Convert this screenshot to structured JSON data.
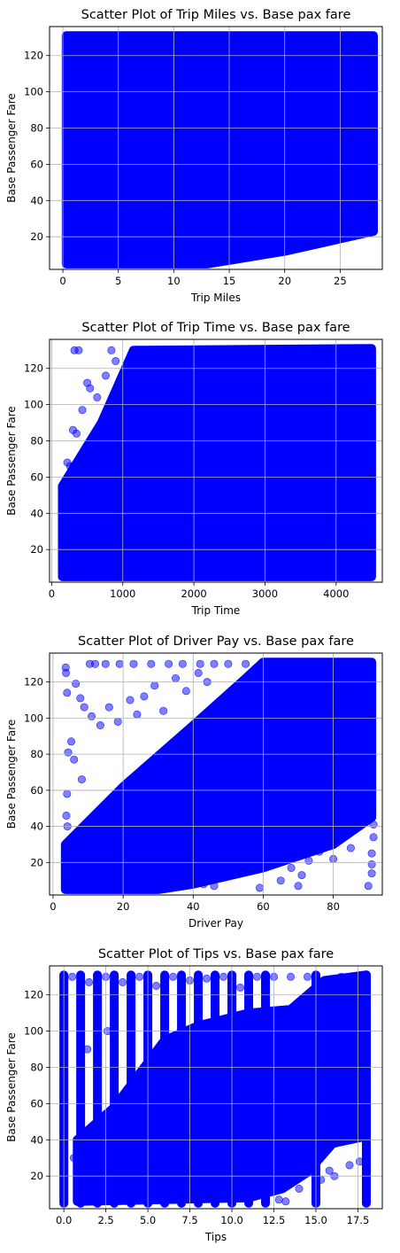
{
  "chart_data": [
    {
      "type": "scatter",
      "title": "Scatter Plot of Trip Miles vs. Base pax fare",
      "xlabel": "Trip Miles",
      "ylabel": "Base Passenger Fare",
      "xlim": [
        -1.2,
        28.8
      ],
      "ylim": [
        2,
        136
      ],
      "xticks": [
        0,
        5,
        10,
        15,
        20,
        25
      ],
      "xtick_labels": [
        "0",
        "5",
        "10",
        "15",
        "20",
        "25"
      ],
      "yticks": [
        20,
        40,
        60,
        80,
        100,
        120
      ],
      "ytick_labels": [
        "20",
        "40",
        "60",
        "80",
        "100",
        "120"
      ],
      "grid": true,
      "point_color": "#0000ff",
      "point_alpha": 0.5,
      "dense_region": [
        [
          0.3,
          130
        ],
        [
          0.3,
          5
        ],
        [
          13,
          5
        ],
        [
          20,
          12
        ],
        [
          28,
          23
        ],
        [
          28,
          131
        ],
        [
          0.3,
          131
        ]
      ],
      "outliers": [
        [
          1.3,
          125
        ],
        [
          1.5,
          118
        ],
        [
          1.1,
          112
        ],
        [
          0.8,
          108
        ],
        [
          2.2,
          122
        ],
        [
          2.8,
          127
        ],
        [
          0.5,
          100
        ],
        [
          1.0,
          97
        ],
        [
          0.7,
          90
        ],
        [
          14.1,
          6
        ],
        [
          14.6,
          6.5
        ],
        [
          10.8,
          7
        ],
        [
          22.0,
          17
        ],
        [
          23.1,
          18
        ],
        [
          21.2,
          15
        ],
        [
          24.5,
          26
        ],
        [
          26.8,
          27
        ],
        [
          27.4,
          31
        ],
        [
          25.8,
          37
        ],
        [
          27.7,
          35
        ],
        [
          3.2,
          126
        ],
        [
          4.4,
          130
        ],
        [
          20.6,
          14
        ]
      ]
    },
    {
      "type": "scatter",
      "title": "Scatter Plot of Trip Time vs. Base pax fare",
      "xlabel": "Trip Time",
      "ylabel": "Base Passenger Fare",
      "xlim": [
        -30,
        4650
      ],
      "ylim": [
        2,
        136
      ],
      "xticks": [
        0,
        1000,
        2000,
        3000,
        4000
      ],
      "xtick_labels": [
        "0",
        "1000",
        "2000",
        "3000",
        "4000"
      ],
      "yticks": [
        20,
        40,
        60,
        80,
        100,
        120
      ],
      "ytick_labels": [
        "20",
        "40",
        "60",
        "80",
        "100",
        "120"
      ],
      "grid": true,
      "point_color": "#0000ff",
      "point_alpha": 0.5,
      "dense_region": [
        [
          150,
          55
        ],
        [
          700,
          90
        ],
        [
          1150,
          130
        ],
        [
          4500,
          131
        ],
        [
          4500,
          5
        ],
        [
          150,
          5
        ]
      ],
      "outliers": [
        [
          320,
          130
        ],
        [
          380,
          130
        ],
        [
          500,
          112
        ],
        [
          540,
          109
        ],
        [
          430,
          97
        ],
        [
          300,
          86
        ],
        [
          350,
          84
        ],
        [
          220,
          68
        ],
        [
          260,
          66
        ],
        [
          840,
          130
        ],
        [
          900,
          124
        ],
        [
          760,
          116
        ],
        [
          640,
          104
        ],
        [
          3050,
          7
        ],
        [
          3200,
          12
        ],
        [
          3500,
          6
        ],
        [
          3700,
          6
        ],
        [
          3950,
          13
        ],
        [
          4050,
          17
        ],
        [
          4480,
          10
        ],
        [
          4480,
          6
        ],
        [
          4420,
          14
        ],
        [
          4300,
          18
        ],
        [
          4150,
          9
        ]
      ]
    },
    {
      "type": "scatter",
      "title": "Scatter Plot of Driver Pay vs. Base pax fare",
      "xlabel": "Driver Pay",
      "ylabel": "Base Passenger Fare",
      "xlim": [
        -1,
        94
      ],
      "ylim": [
        2,
        136
      ],
      "xticks": [
        0,
        20,
        40,
        60,
        80
      ],
      "xtick_labels": [
        "0",
        "20",
        "40",
        "60",
        "80"
      ],
      "yticks": [
        20,
        40,
        60,
        80,
        100,
        120
      ],
      "ytick_labels": [
        "20",
        "40",
        "60",
        "80",
        "100",
        "120"
      ],
      "grid": true,
      "point_color": "#0000ff",
      "point_alpha": 0.5,
      "dense_region": [
        [
          3.5,
          30
        ],
        [
          20,
          62
        ],
        [
          40,
          96
        ],
        [
          55,
          122
        ],
        [
          60,
          131
        ],
        [
          91,
          131
        ],
        [
          91,
          45
        ],
        [
          80,
          30
        ],
        [
          60,
          17
        ],
        [
          40,
          8
        ],
        [
          30,
          5
        ],
        [
          3.5,
          5
        ]
      ],
      "outliers": [
        [
          3.6,
          128
        ],
        [
          3.7,
          125
        ],
        [
          4.0,
          114
        ],
        [
          6.5,
          119
        ],
        [
          7.8,
          111
        ],
        [
          8.9,
          106
        ],
        [
          5.2,
          87
        ],
        [
          4.3,
          81
        ],
        [
          6.0,
          77
        ],
        [
          8.2,
          66
        ],
        [
          4.0,
          58
        ],
        [
          3.8,
          46
        ],
        [
          4.1,
          40
        ],
        [
          11.0,
          101
        ],
        [
          13.5,
          96
        ],
        [
          16.0,
          106
        ],
        [
          18.5,
          98
        ],
        [
          22.0,
          110
        ],
        [
          24.0,
          102
        ],
        [
          26.0,
          112
        ],
        [
          29.0,
          118
        ],
        [
          31.5,
          104
        ],
        [
          35.0,
          122
        ],
        [
          38.0,
          115
        ],
        [
          41.5,
          125
        ],
        [
          44.0,
          120
        ],
        [
          10.5,
          130
        ],
        [
          12.0,
          130
        ],
        [
          15.0,
          130
        ],
        [
          19.0,
          130
        ],
        [
          23.0,
          130
        ],
        [
          28.0,
          130
        ],
        [
          33.0,
          130
        ],
        [
          37.0,
          130
        ],
        [
          42.0,
          130
        ],
        [
          46.0,
          130
        ],
        [
          50.0,
          130
        ],
        [
          55.0,
          130
        ],
        [
          43.0,
          8
        ],
        [
          46.0,
          7
        ],
        [
          59.0,
          6
        ],
        [
          65.0,
          10
        ],
        [
          70.0,
          7
        ],
        [
          73.0,
          21
        ],
        [
          76.0,
          26
        ],
        [
          80.0,
          22
        ],
        [
          82.5,
          34
        ],
        [
          85.0,
          28
        ],
        [
          88.0,
          42
        ],
        [
          90.0,
          7
        ],
        [
          91.0,
          14
        ],
        [
          91.0,
          19
        ],
        [
          91.0,
          25
        ],
        [
          91.5,
          34
        ],
        [
          91.5,
          41
        ],
        [
          68.0,
          17
        ],
        [
          71.0,
          13
        ],
        [
          61.0,
          24
        ]
      ]
    },
    {
      "type": "scatter",
      "title": "Scatter Plot of Tips vs. Base pax fare",
      "xlabel": "Tips",
      "ylabel": "Base Passenger Fare",
      "xlim": [
        -0.85,
        18.95
      ],
      "ylim": [
        2,
        136
      ],
      "xticks": [
        0.0,
        2.5,
        5.0,
        7.5,
        10.0,
        12.5,
        15.0,
        17.5
      ],
      "xtick_labels": [
        "0.0",
        "2.5",
        "5.0",
        "7.5",
        "10.0",
        "12.5",
        "15.0",
        "17.5"
      ],
      "yticks": [
        20,
        40,
        60,
        80,
        100,
        120
      ],
      "ytick_labels": [
        "20",
        "40",
        "60",
        "80",
        "100",
        "120"
      ],
      "grid": true,
      "point_color": "#0000ff",
      "point_alpha": 0.5,
      "dense_region": [
        [
          0.8,
          6
        ],
        [
          0.8,
          40
        ],
        [
          3,
          58
        ],
        [
          6,
          95
        ],
        [
          8,
          103
        ],
        [
          11,
          110
        ],
        [
          13.5,
          112
        ],
        [
          15.5,
          128
        ],
        [
          18,
          131
        ],
        [
          18,
          42
        ],
        [
          16,
          38
        ],
        [
          14.5,
          22
        ],
        [
          13,
          13
        ],
        [
          11,
          8
        ],
        [
          0.8,
          6
        ]
      ],
      "columns": [
        {
          "x": 0.0,
          "y0": 5,
          "y1": 131
        },
        {
          "x": 1.0,
          "y0": 5,
          "y1": 131
        },
        {
          "x": 2.0,
          "y0": 5,
          "y1": 131
        },
        {
          "x": 3.0,
          "y0": 5,
          "y1": 131
        },
        {
          "x": 4.0,
          "y0": 5,
          "y1": 131
        },
        {
          "x": 5.0,
          "y0": 5,
          "y1": 131
        },
        {
          "x": 6.0,
          "y0": 5,
          "y1": 131
        },
        {
          "x": 7.0,
          "y0": 5,
          "y1": 131
        },
        {
          "x": 8.0,
          "y0": 5,
          "y1": 131
        },
        {
          "x": 9.0,
          "y0": 5,
          "y1": 131
        },
        {
          "x": 10.0,
          "y0": 5,
          "y1": 131
        },
        {
          "x": 11.0,
          "y0": 5,
          "y1": 131
        },
        {
          "x": 12.0,
          "y0": 5,
          "y1": 131
        },
        {
          "x": 15.0,
          "y0": 5,
          "y1": 131
        },
        {
          "x": 18.0,
          "y0": 5,
          "y1": 131
        }
      ],
      "outliers": [
        [
          0.5,
          130
        ],
        [
          1.5,
          127
        ],
        [
          2.5,
          130
        ],
        [
          3.5,
          127
        ],
        [
          4.5,
          130
        ],
        [
          5.5,
          125
        ],
        [
          6.5,
          130
        ],
        [
          7.5,
          128
        ],
        [
          8.5,
          129
        ],
        [
          9.5,
          130
        ],
        [
          10.5,
          124
        ],
        [
          11.5,
          130
        ],
        [
          12.5,
          130
        ],
        [
          13.5,
          130
        ],
        [
          14.5,
          130
        ],
        [
          16.5,
          130
        ],
        [
          12.8,
          7
        ],
        [
          13.2,
          6
        ],
        [
          14.0,
          13
        ],
        [
          15.3,
          18
        ],
        [
          16.1,
          20
        ],
        [
          17.0,
          26
        ],
        [
          17.6,
          28
        ],
        [
          15.8,
          23
        ],
        [
          0.6,
          30
        ],
        [
          1.4,
          90
        ],
        [
          2.6,
          100
        ],
        [
          5.4,
          35
        ],
        [
          6.2,
          72
        ],
        [
          7.8,
          64
        ],
        [
          9.1,
          48
        ],
        [
          10.8,
          30
        ],
        [
          14.8,
          35
        ],
        [
          16.4,
          40
        ]
      ]
    }
  ]
}
